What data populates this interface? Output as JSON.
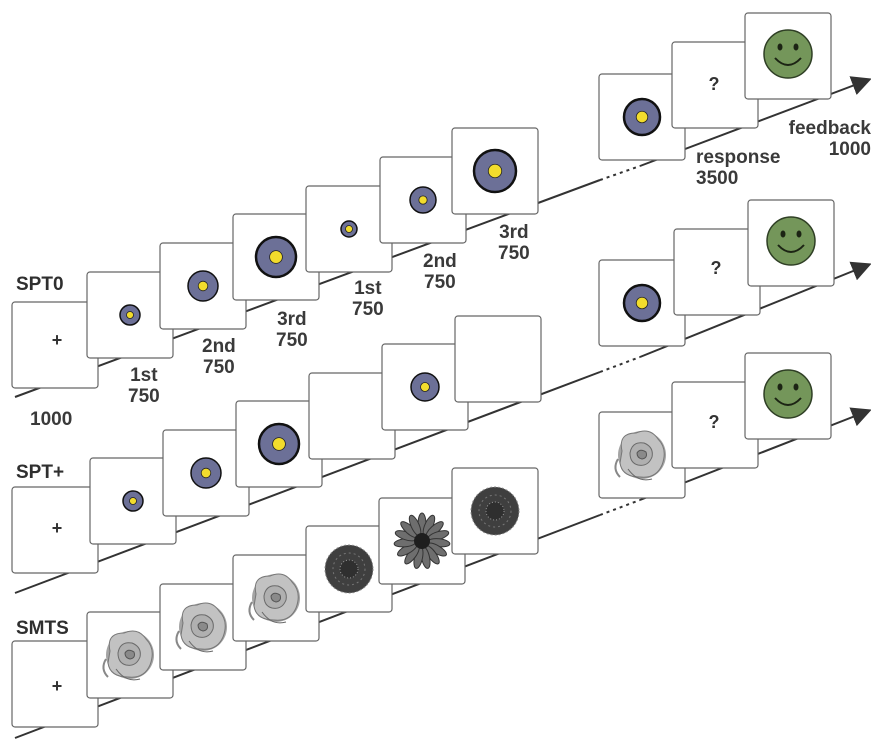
{
  "conditions": [
    {
      "id": "spt0",
      "label": "SPT0"
    },
    {
      "id": "sptplus",
      "label": "SPT+"
    },
    {
      "id": "smts",
      "label": "SMTS"
    }
  ],
  "fixation_symbol": "+",
  "response_symbol": "?",
  "timing": {
    "fixation_ms": "1000",
    "first": {
      "ordinal": "1st",
      "ms": "750"
    },
    "second": {
      "ordinal": "2nd",
      "ms": "750"
    },
    "third": {
      "ordinal": "3rd",
      "ms": "750"
    },
    "first_b": {
      "ordinal": "1st",
      "ms": "750"
    },
    "second_b": {
      "ordinal": "2nd",
      "ms": "750"
    },
    "third_b": {
      "ordinal": "3rd",
      "ms": "750"
    },
    "response": {
      "label": "response",
      "ms": "3500"
    },
    "feedback": {
      "label": "feedback",
      "ms": "1000"
    }
  },
  "colors": {
    "disc": "#6c7097",
    "dot": "#f2dc2c",
    "smiley": "#74965a",
    "rose": "#9e9e9e",
    "daisy": "#4a4a4a"
  },
  "icons": [
    "fixation-cross",
    "spatial-disc-icon",
    "rose-flower-icon",
    "daisy-flower-icon",
    "dahlia-flower-icon",
    "smiley-face-icon"
  ]
}
